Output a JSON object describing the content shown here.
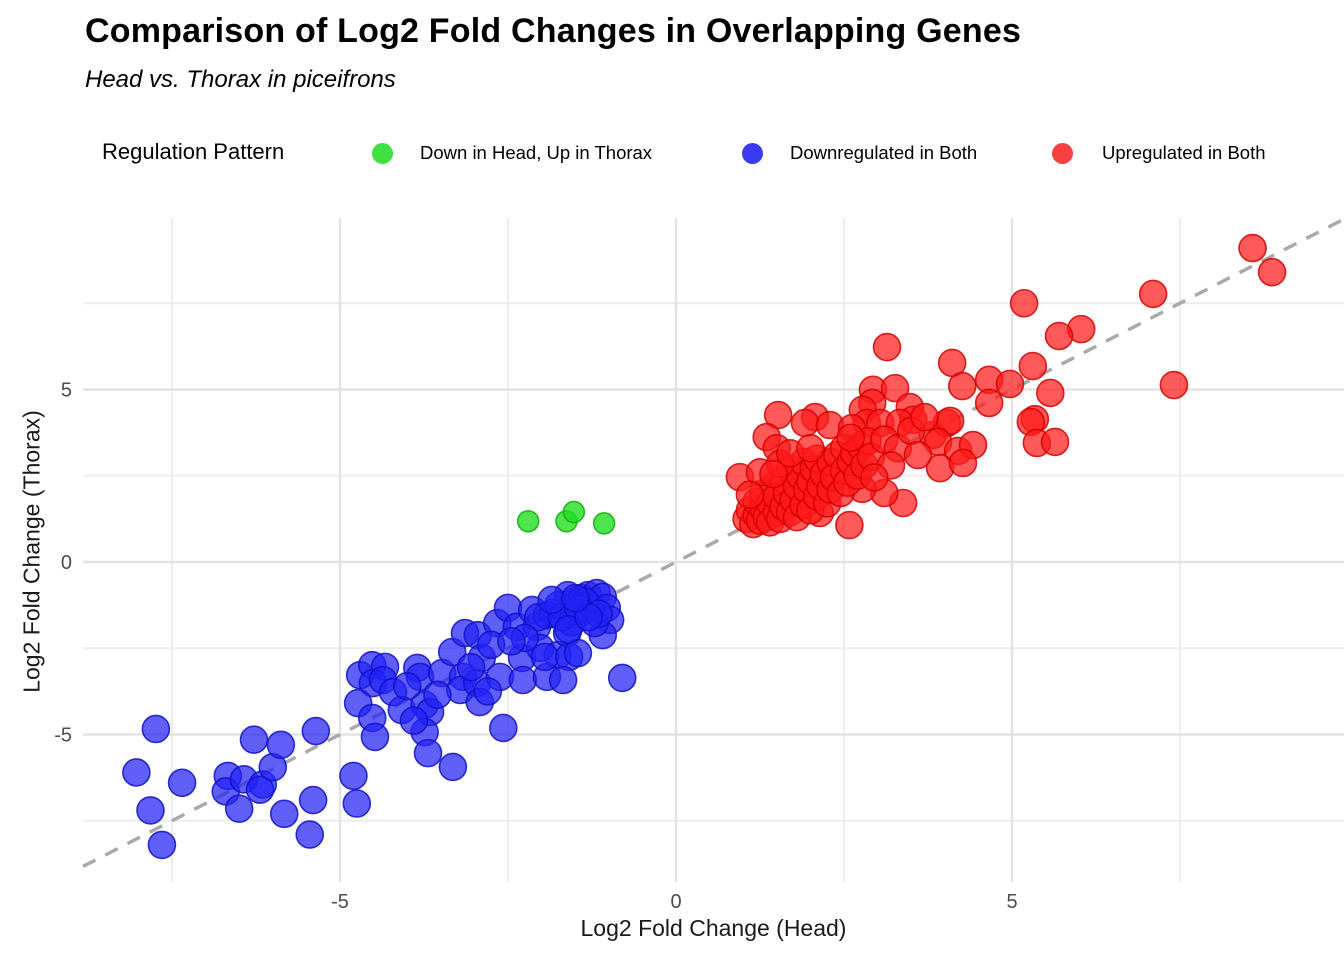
{
  "title": "Comparison of Log2 Fold Changes in Overlapping Genes",
  "subtitle": "Head vs. Thorax in piceifrons",
  "legend": {
    "title": "Regulation Pattern",
    "items": [
      {
        "label": "Down in Head, Up in Thorax",
        "color": "#3fe03f"
      },
      {
        "label": "Downregulated in Both",
        "color": "#3a3af0"
      },
      {
        "label": "Upregulated in Both",
        "color": "#f94040"
      }
    ]
  },
  "axes": {
    "x": {
      "title": "Log2 Fold Change (Head)",
      "ticks": [
        -5,
        0,
        5
      ],
      "minor_ticks": [
        -7.5,
        -2.5,
        2.5,
        7.5
      ],
      "range": [
        -8.85,
        9.95
      ]
    },
    "y": {
      "title": "Log2 Fold Change (Thorax)",
      "ticks": [
        -5,
        0,
        5
      ],
      "minor_ticks": [
        -7.5,
        -2.5,
        2.5,
        7.5
      ],
      "range": [
        -9.28,
        9.97
      ]
    }
  },
  "reference_line": {
    "type": "identity y=x",
    "style": "dashed",
    "color": "#aaaaaa"
  },
  "chart_data": {
    "type": "scatter",
    "title": "Comparison of Log2 Fold Changes in Overlapping Genes",
    "xlabel": "Log2 Fold Change (Head)",
    "ylabel": "Log2 Fold Change (Thorax)",
    "xlim": [
      -8.85,
      9.95
    ],
    "ylim": [
      -9.28,
      9.97
    ],
    "grid": true,
    "legend_position": "top",
    "series": [
      {
        "name": "Down in Head, Up in Thorax",
        "fill": "#22dd22",
        "stroke": "#0fae0f",
        "radius": 10.5,
        "opacity": 0.8,
        "points": [
          [
            -2.2,
            1.18
          ],
          [
            -1.63,
            1.18
          ],
          [
            -1.52,
            1.45
          ],
          [
            -1.07,
            1.12
          ]
        ]
      },
      {
        "name": "Downregulated in Both",
        "fill": "#2222f5",
        "stroke": "#1111c8",
        "radius": 13.5,
        "opacity": 0.72,
        "points": [
          [
            -8.03,
            -6.1
          ],
          [
            -7.65,
            -8.2
          ],
          [
            -7.74,
            -4.84
          ],
          [
            -7.82,
            -7.2
          ],
          [
            -7.35,
            -6.4
          ],
          [
            -6.67,
            -6.2
          ],
          [
            -6.7,
            -6.65
          ],
          [
            -6.43,
            -6.3
          ],
          [
            -6.5,
            -7.15
          ],
          [
            -6.15,
            -6.45
          ],
          [
            -6.19,
            -6.6
          ],
          [
            -6.0,
            -5.95
          ],
          [
            -5.83,
            -7.3
          ],
          [
            -6.28,
            -5.15
          ],
          [
            -5.88,
            -5.3
          ],
          [
            -5.45,
            -7.9
          ],
          [
            -5.4,
            -6.9
          ],
          [
            -5.36,
            -4.9
          ],
          [
            -4.8,
            -6.2
          ],
          [
            -4.75,
            -7.0
          ],
          [
            -4.7,
            -3.28
          ],
          [
            -4.52,
            -2.99
          ],
          [
            -4.33,
            -3.04
          ],
          [
            -4.51,
            -3.51
          ],
          [
            -4.36,
            -3.42
          ],
          [
            -4.73,
            -4.09
          ],
          [
            -4.52,
            -4.52
          ],
          [
            -4.48,
            -5.07
          ],
          [
            -4.21,
            -3.77
          ],
          [
            -4.08,
            -4.29
          ],
          [
            -3.85,
            -3.07
          ],
          [
            -3.81,
            -3.33
          ],
          [
            -3.74,
            -4.14
          ],
          [
            -3.66,
            -4.35
          ],
          [
            -3.74,
            -4.93
          ],
          [
            -3.69,
            -5.54
          ],
          [
            -3.48,
            -3.22
          ],
          [
            -3.33,
            -2.61
          ],
          [
            -3.32,
            -5.94
          ],
          [
            -3.14,
            -2.06
          ],
          [
            -2.95,
            -2.12
          ],
          [
            -3.17,
            -3.33
          ],
          [
            -3.21,
            -3.71
          ],
          [
            -2.96,
            -3.51
          ],
          [
            -2.92,
            -4.06
          ],
          [
            -2.89,
            -2.78
          ],
          [
            -2.66,
            -1.77
          ],
          [
            -2.62,
            -3.33
          ],
          [
            -2.57,
            -4.81
          ],
          [
            -2.5,
            -1.33
          ],
          [
            -2.37,
            -1.88
          ],
          [
            -2.29,
            -2.78
          ],
          [
            -2.28,
            -3.42
          ],
          [
            -2.14,
            -1.39
          ],
          [
            -2.07,
            -1.88
          ],
          [
            -2.02,
            -2.49
          ],
          [
            -1.92,
            -1.54
          ],
          [
            -1.83,
            -1.48
          ],
          [
            -1.76,
            -2.7
          ],
          [
            -1.92,
            -3.33
          ],
          [
            -1.62,
            -2.06
          ],
          [
            -1.53,
            -1.16
          ],
          [
            -1.47,
            -1.54
          ],
          [
            -1.61,
            -0.96
          ],
          [
            -1.4,
            -1.04
          ],
          [
            -1.31,
            -0.96
          ],
          [
            -1.25,
            -1.33
          ],
          [
            -1.18,
            -0.9
          ],
          [
            -1.09,
            -1.01
          ],
          [
            -1.03,
            -1.33
          ],
          [
            -0.98,
            -1.68
          ],
          [
            -1.09,
            -2.12
          ],
          [
            -1.21,
            -1.77
          ],
          [
            -1.95,
            -2.75
          ],
          [
            -1.59,
            -2.75
          ],
          [
            -1.46,
            -2.64
          ],
          [
            -0.8,
            -3.36
          ],
          [
            -1.68,
            -3.42
          ],
          [
            -2.05,
            -1.6
          ],
          [
            -1.75,
            -1.25
          ],
          [
            -1.55,
            -1.75
          ],
          [
            -1.35,
            -1.15
          ],
          [
            -1.7,
            -1.6
          ],
          [
            -1.45,
            -1.35
          ],
          [
            -1.85,
            -1.1
          ],
          [
            -1.15,
            -1.5
          ],
          [
            -2.25,
            -2.2
          ],
          [
            -1.6,
            -1.95
          ],
          [
            -1.3,
            -1.6
          ],
          [
            -1.5,
            -1.05
          ],
          [
            -4.0,
            -3.6
          ],
          [
            -3.55,
            -3.85
          ],
          [
            -3.05,
            -3.05
          ],
          [
            -2.75,
            -2.4
          ],
          [
            -2.45,
            -2.3
          ],
          [
            -3.9,
            -4.6
          ],
          [
            -2.8,
            -3.75
          ]
        ]
      },
      {
        "name": "Upregulated in Both",
        "fill": "#ff1a1a",
        "stroke": "#d40000",
        "radius": 13.5,
        "opacity": 0.72,
        "points": [
          [
            8.58,
            9.1
          ],
          [
            8.87,
            8.4
          ],
          [
            7.1,
            7.77
          ],
          [
            5.18,
            7.5
          ],
          [
            6.03,
            6.75
          ],
          [
            5.7,
            6.55
          ],
          [
            3.14,
            6.23
          ],
          [
            4.11,
            5.77
          ],
          [
            4.26,
            5.1
          ],
          [
            4.66,
            5.28
          ],
          [
            4.97,
            5.16
          ],
          [
            5.31,
            5.68
          ],
          [
            7.41,
            5.13
          ],
          [
            5.57,
            4.9
          ],
          [
            5.34,
            4.14
          ],
          [
            4.66,
            4.61
          ],
          [
            2.93,
            4.99
          ],
          [
            3.26,
            5.04
          ],
          [
            2.92,
            4.61
          ],
          [
            3.48,
            4.49
          ],
          [
            3.53,
            4.12
          ],
          [
            1.52,
            4.26
          ],
          [
            2.07,
            4.2
          ],
          [
            1.92,
            4.03
          ],
          [
            2.78,
            4.41
          ],
          [
            2.84,
            4.03
          ],
          [
            2.29,
            3.97
          ],
          [
            2.62,
            3.88
          ],
          [
            3.04,
            4.03
          ],
          [
            3.33,
            4.03
          ],
          [
            3.82,
            3.68
          ],
          [
            4.03,
            4.03
          ],
          [
            4.08,
            4.09
          ],
          [
            3.9,
            3.48
          ],
          [
            4.2,
            3.22
          ],
          [
            4.42,
            3.39
          ],
          [
            3.93,
            2.72
          ],
          [
            5.28,
            4.06
          ],
          [
            5.37,
            3.45
          ],
          [
            5.64,
            3.48
          ],
          [
            2.58,
            1.07
          ],
          [
            3.38,
            1.71
          ],
          [
            3.1,
            2.0
          ],
          [
            2.77,
            2.12
          ],
          [
            4.27,
            2.87
          ],
          [
            2.14,
            1.42
          ],
          [
            1.35,
            3.62
          ],
          [
            1.5,
            3.3
          ],
          [
            0.95,
            2.46
          ],
          [
            1.05,
            1.25
          ],
          [
            1.1,
            1.5
          ],
          [
            1.15,
            1.1
          ],
          [
            1.2,
            1.35
          ],
          [
            1.2,
            1.75
          ],
          [
            1.25,
            1.2
          ],
          [
            1.3,
            1.55
          ],
          [
            1.3,
            2.0
          ],
          [
            1.35,
            1.3
          ],
          [
            1.4,
            1.7
          ],
          [
            1.4,
            1.15
          ],
          [
            1.45,
            2.2
          ],
          [
            1.5,
            1.45
          ],
          [
            1.5,
            1.9
          ],
          [
            1.55,
            1.25
          ],
          [
            1.6,
            2.4
          ],
          [
            1.6,
            1.6
          ],
          [
            1.65,
            2.0
          ],
          [
            1.7,
            1.45
          ],
          [
            1.7,
            2.7
          ],
          [
            1.75,
            1.8
          ],
          [
            1.8,
            2.2
          ],
          [
            1.8,
            1.3
          ],
          [
            1.85,
            2.5
          ],
          [
            1.9,
            1.65
          ],
          [
            1.9,
            2.9
          ],
          [
            1.95,
            2.1
          ],
          [
            2.0,
            1.5
          ],
          [
            2.0,
            2.35
          ],
          [
            2.05,
            2.7
          ],
          [
            2.1,
            1.9
          ],
          [
            2.1,
            3.0
          ],
          [
            2.15,
            2.2
          ],
          [
            2.2,
            2.55
          ],
          [
            2.25,
            1.7
          ],
          [
            2.3,
            2.9
          ],
          [
            2.3,
            2.1
          ],
          [
            2.35,
            2.45
          ],
          [
            2.4,
            3.1
          ],
          [
            2.45,
            2.0
          ],
          [
            2.5,
            2.65
          ],
          [
            2.5,
            3.3
          ],
          [
            2.55,
            2.3
          ],
          [
            2.6,
            2.9
          ],
          [
            2.65,
            3.15
          ],
          [
            2.7,
            2.5
          ],
          [
            2.75,
            3.35
          ],
          [
            2.8,
            2.8
          ],
          [
            2.85,
            3.5
          ],
          [
            2.9,
            3.05
          ],
          [
            1.25,
            2.6
          ],
          [
            1.55,
            2.85
          ],
          [
            1.1,
            1.95
          ],
          [
            1.7,
            3.15
          ],
          [
            2.0,
            3.3
          ],
          [
            1.45,
            2.55
          ],
          [
            3.1,
            3.55
          ],
          [
            3.3,
            3.3
          ],
          [
            3.5,
            3.8
          ],
          [
            2.6,
            3.6
          ],
          [
            3.2,
            2.8
          ],
          [
            3.6,
            3.1
          ],
          [
            3.7,
            4.2
          ],
          [
            2.95,
            2.45
          ]
        ]
      }
    ]
  },
  "style": {
    "grid_major_color": "#e3e3e3",
    "grid_minor_color": "#ededed",
    "tick_label_color": "#4d4d4d",
    "background": "#ffffff"
  }
}
